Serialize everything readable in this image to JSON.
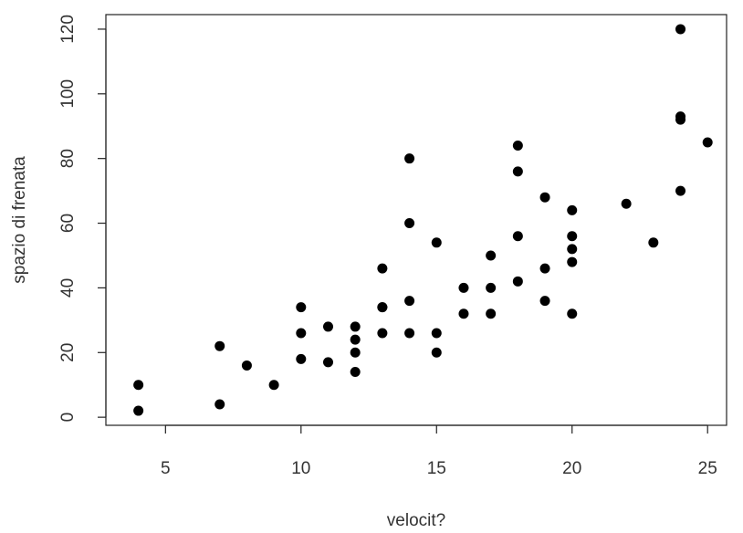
{
  "chart_data": {
    "type": "scatter",
    "title": "",
    "xlabel": "velocit?",
    "ylabel": "spazio di frenata",
    "xlim": [
      2.8,
      25.7
    ],
    "ylim": [
      -2.5,
      124.5
    ],
    "xticks": [
      5,
      10,
      15,
      20,
      25
    ],
    "yticks": [
      0,
      20,
      40,
      60,
      80,
      100,
      120
    ],
    "xtick_labels": [
      "5",
      "10",
      "15",
      "20",
      "25"
    ],
    "ytick_labels": [
      "0",
      "20",
      "40",
      "60",
      "80",
      "100",
      "120"
    ],
    "grid": false,
    "point_color": "#000000",
    "series": [
      {
        "x": [
          4,
          4,
          7,
          7,
          8,
          9,
          10,
          10,
          10,
          11,
          11,
          12,
          12,
          12,
          12,
          13,
          13,
          13,
          13,
          14,
          14,
          14,
          14,
          15,
          15,
          15,
          16,
          16,
          17,
          17,
          17,
          18,
          18,
          18,
          18,
          19,
          19,
          19,
          20,
          20,
          20,
          20,
          20,
          22,
          23,
          24,
          24,
          24,
          24,
          25
        ],
        "y": [
          2,
          10,
          4,
          22,
          16,
          10,
          18,
          26,
          34,
          17,
          28,
          14,
          20,
          24,
          28,
          26,
          34,
          34,
          46,
          26,
          36,
          60,
          80,
          20,
          26,
          54,
          32,
          40,
          32,
          40,
          50,
          42,
          56,
          76,
          84,
          36,
          46,
          68,
          32,
          48,
          52,
          56,
          64,
          66,
          54,
          70,
          92,
          93,
          120,
          85
        ]
      }
    ]
  }
}
